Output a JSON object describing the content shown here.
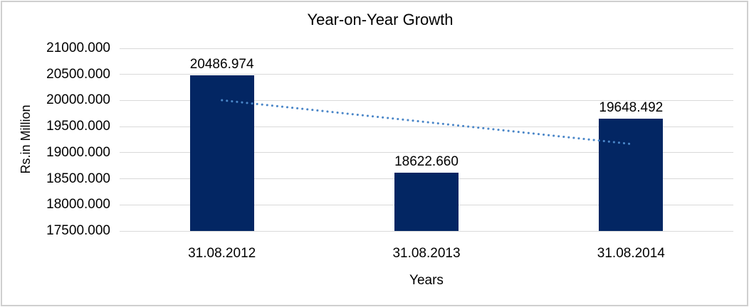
{
  "window": {
    "background_color": "#ffffff",
    "border_color": "#cfcfcf"
  },
  "chart_data": {
    "type": "bar",
    "title": "Year-on-Year Growth",
    "xlabel": "Years",
    "ylabel": "Rs.in Million",
    "categories": [
      "31.08.2012",
      "31.08.2013",
      "31.08.2014"
    ],
    "values": [
      20486.974,
      18622.66,
      19648.492
    ],
    "data_labels": [
      "20486.974",
      "18622.660",
      "19648.492"
    ],
    "ylim": [
      17500,
      21000
    ],
    "ytick_step": 500,
    "ytick_labels": [
      "21000.000",
      "20500.000",
      "20000.000",
      "19500.000",
      "19000.000",
      "18500.000",
      "18000.000",
      "17500.000"
    ],
    "grid": true,
    "legend_position": "none",
    "bar_color": "#032663",
    "gridline_color": "#d9d9d9",
    "text_color": "#000000",
    "trendline": {
      "type": "linear",
      "style": "dotted",
      "color": "#4a86c8",
      "start_value": 20005.3,
      "end_value": 19166.8
    }
  }
}
